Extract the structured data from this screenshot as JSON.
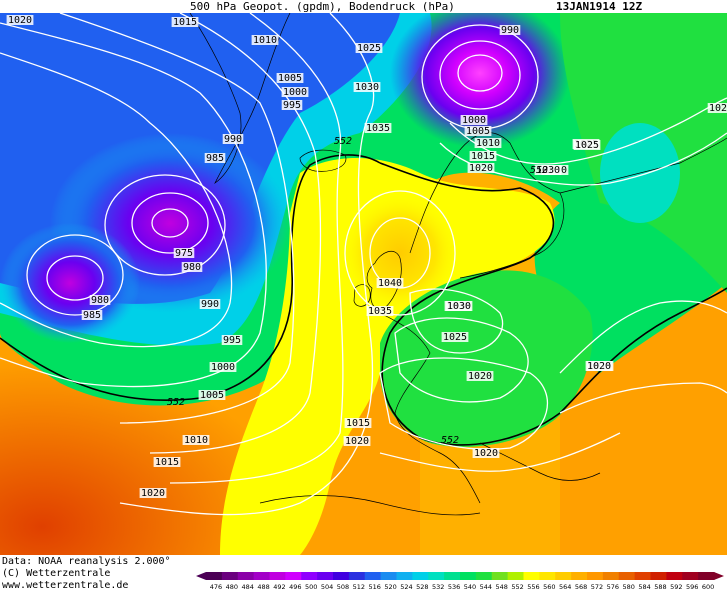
{
  "header": {
    "title": "500 hPa Geopot. (gpdm), Bodendruck (hPa)",
    "date": "13JAN1914 12Z"
  },
  "footer": {
    "source": "Data: NOAA reanalysis 2.000°",
    "copyright": "(C) Wetterzentrale",
    "website": "www.wetterzentrale.de"
  },
  "isobar_labels": [
    "1020",
    "1015",
    "1010",
    "1005",
    "1000",
    "995",
    "990",
    "985",
    "975",
    "980",
    "980",
    "985",
    "990",
    "995",
    "1000",
    "1005",
    "1010",
    "1015",
    "1020",
    "1025",
    "1030",
    "1035",
    "1040",
    "1035",
    "1030",
    "1025",
    "1020",
    "1015",
    "1020",
    "1015",
    "1025",
    "1030",
    "990",
    "1000",
    "1005",
    "1010",
    "1015",
    "1020",
    "1025",
    "1030",
    "1030",
    "1020",
    "1020",
    "102"
  ],
  "geopot_labels": [
    "552",
    "552",
    "552",
    "552"
  ],
  "colorbar": {
    "ticks": [
      "476",
      "480",
      "484",
      "488",
      "492",
      "496",
      "500",
      "504",
      "508",
      "512",
      "516",
      "520",
      "524",
      "528",
      "532",
      "536",
      "540",
      "544",
      "548",
      "552",
      "556",
      "560",
      "564",
      "568",
      "572",
      "576",
      "580",
      "584",
      "588",
      "592",
      "596",
      "600"
    ],
    "colors": [
      "#4b0055",
      "#6a007e",
      "#8a00a8",
      "#a300c8",
      "#c000e0",
      "#d000ff",
      "#9000ff",
      "#6a00f0",
      "#4000e0",
      "#2a30e0",
      "#2060f0",
      "#1a8cf0",
      "#10b0f0",
      "#00d0e8",
      "#00e0c0",
      "#00e090",
      "#00e060",
      "#20e040",
      "#70e020",
      "#b0f000",
      "#ffff00",
      "#ffe600",
      "#ffcc00",
      "#ffb000",
      "#ff9800",
      "#f08000",
      "#e86000",
      "#e04000",
      "#d02000",
      "#c00010",
      "#a00020",
      "#800028"
    ]
  }
}
